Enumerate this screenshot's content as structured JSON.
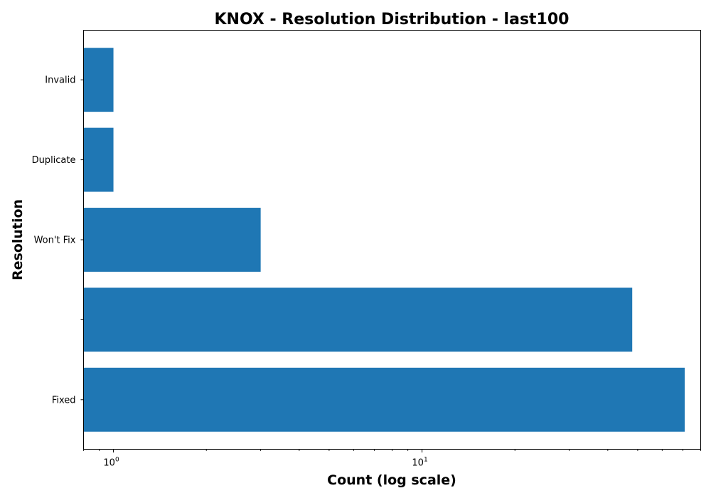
{
  "chart_data": {
    "type": "bar",
    "orientation": "horizontal",
    "title": "KNOX - Resolution Distribution - last100",
    "xlabel": "Count (log scale)",
    "ylabel": "Resolution",
    "x_scale": "log",
    "xlim": [
      0.8,
      80
    ],
    "categories": [
      "Fixed",
      "",
      "Won't Fix",
      "Duplicate",
      "Invalid"
    ],
    "values": [
      71,
      48,
      3,
      1,
      1
    ],
    "bar_color": "#1f77b4",
    "grid": false,
    "x_ticks": [
      {
        "base": "10",
        "exp": "0",
        "value": 1
      },
      {
        "base": "10",
        "exp": "1",
        "value": 10
      }
    ]
  }
}
